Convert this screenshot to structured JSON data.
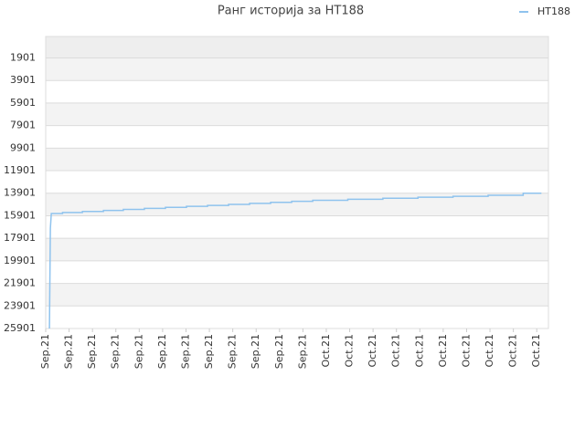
{
  "chart_data": {
    "type": "line",
    "title": "Ранг историја за HT188",
    "series": [
      {
        "name": "HT188",
        "color": "#8fc3ee",
        "x": [
          0.16,
          0.2,
          0.24,
          0.72,
          0.72,
          1.57,
          1.57,
          2.47,
          2.47,
          3.32,
          3.32,
          4.22,
          4.22,
          5.12,
          5.12,
          6.02,
          6.02,
          6.92,
          6.92,
          7.82,
          7.82,
          8.72,
          8.72,
          9.62,
          9.62,
          10.52,
          10.52,
          11.42,
          11.42,
          12.92,
          12.92,
          14.42,
          14.42,
          15.92,
          15.92,
          17.42,
          17.42,
          18.92,
          18.92,
          20.42,
          20.42,
          21.2
        ],
        "values": [
          25901,
          17000,
          15700,
          15700,
          15610,
          15610,
          15520,
          15520,
          15430,
          15430,
          15340,
          15340,
          15250,
          15250,
          15160,
          15160,
          15070,
          15070,
          14980,
          14980,
          14890,
          14890,
          14800,
          14800,
          14710,
          14710,
          14620,
          14620,
          14530,
          14530,
          14440,
          14440,
          14350,
          14350,
          14260,
          14260,
          14170,
          14170,
          14080,
          14080,
          13900,
          13900
        ]
      }
    ],
    "xlim": [
      0,
      21.5
    ],
    "xticks": [
      {
        "value": 0,
        "label": "Sep.21"
      },
      {
        "value": 1,
        "label": "Sep.21"
      },
      {
        "value": 2,
        "label": "Sep.21"
      },
      {
        "value": 3,
        "label": "Sep.21"
      },
      {
        "value": 4,
        "label": "Sep.21"
      },
      {
        "value": 5,
        "label": "Sep.21"
      },
      {
        "value": 6,
        "label": "Sep.21"
      },
      {
        "value": 7,
        "label": "Sep.21"
      },
      {
        "value": 8,
        "label": "Sep.21"
      },
      {
        "value": 9,
        "label": "Sep.21"
      },
      {
        "value": 10,
        "label": "Sep.21"
      },
      {
        "value": 11,
        "label": "Sep.21"
      },
      {
        "value": 12,
        "label": "Oct.21"
      },
      {
        "value": 13,
        "label": "Oct.21"
      },
      {
        "value": 14,
        "label": "Oct.21"
      },
      {
        "value": 15,
        "label": "Oct.21"
      },
      {
        "value": 16,
        "label": "Oct.21"
      },
      {
        "value": 17,
        "label": "Oct.21"
      },
      {
        "value": 18,
        "label": "Oct.21"
      },
      {
        "value": 19,
        "label": "Oct.21"
      },
      {
        "value": 20,
        "label": "Oct.21"
      },
      {
        "value": 21,
        "label": "Oct.21"
      }
    ],
    "ylim": [
      25901,
      0
    ],
    "yticks": [
      1901,
      3901,
      5901,
      7901,
      9901,
      11901,
      13901,
      15901,
      17901,
      19901,
      21901,
      23901,
      25901
    ],
    "grid": true,
    "legend": "top-right"
  }
}
